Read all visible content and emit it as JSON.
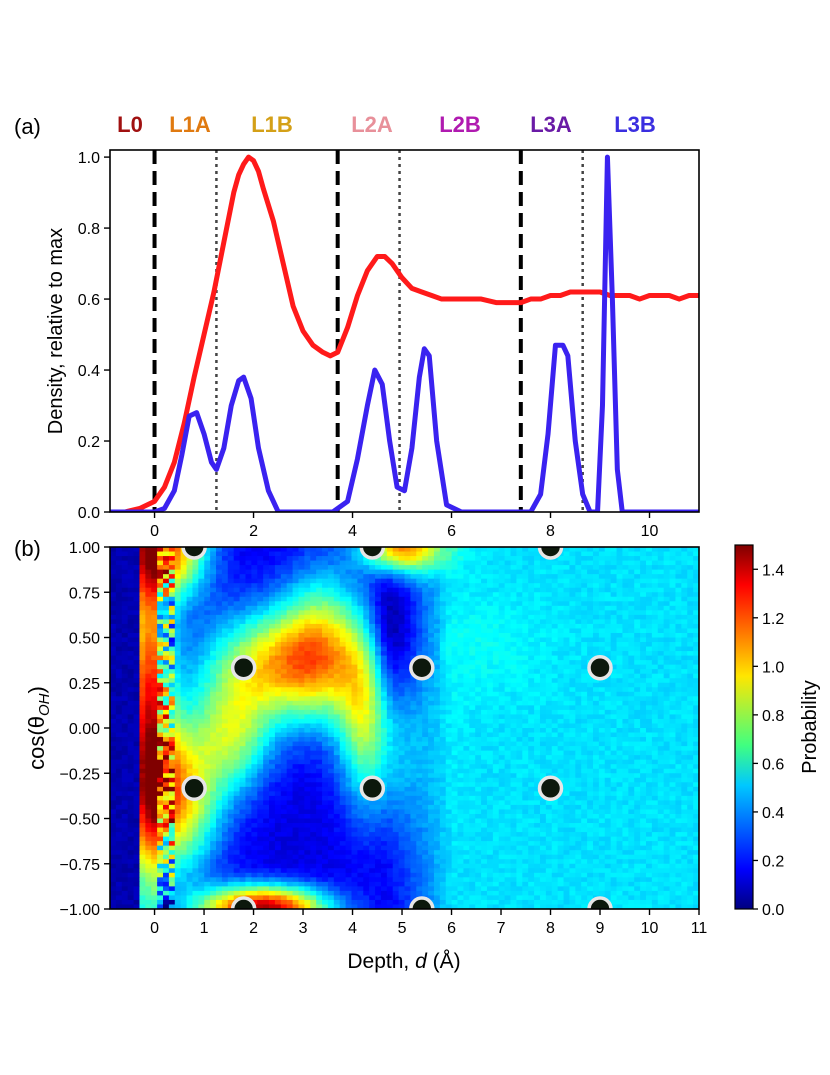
{
  "chart_data": [
    {
      "panel": "(a)",
      "type": "line",
      "ylabel": "Density, relative to max",
      "xlim": [
        -0.9,
        11.0
      ],
      "ylim": [
        0.0,
        1.02
      ],
      "xticks": [
        0,
        2,
        4,
        6,
        8,
        10
      ],
      "yticks": [
        0.0,
        0.2,
        0.4,
        0.6,
        0.8,
        1.0
      ],
      "xtick_labels": [
        "0",
        "2",
        "4",
        "6",
        "8",
        "10"
      ],
      "ytick_labels": [
        "0.0",
        "0.2",
        "0.4",
        "0.6",
        "0.8",
        "1.0"
      ],
      "layer_labels": [
        {
          "label": "L0",
          "color": "#a01010"
        },
        {
          "label": "L1A",
          "color": "#e07a10"
        },
        {
          "label": "L1B",
          "color": "#d4a017"
        },
        {
          "label": "L2A",
          "color": "#e8909a"
        },
        {
          "label": "L2B",
          "color": "#b01ab0"
        },
        {
          "label": "L3A",
          "color": "#6a1aa6"
        },
        {
          "label": "L3B",
          "color": "#3a2ee0"
        }
      ],
      "boundaries": [
        {
          "x": 0.0,
          "style": "dashed"
        },
        {
          "x": 1.25,
          "style": "dotted"
        },
        {
          "x": 3.7,
          "style": "dashed"
        },
        {
          "x": 4.95,
          "style": "dotted"
        },
        {
          "x": 7.4,
          "style": "dashed"
        },
        {
          "x": 8.65,
          "style": "dotted"
        }
      ],
      "series": [
        {
          "name": "red",
          "color": "#ff1a1a",
          "x": [
            -0.9,
            -0.6,
            -0.3,
            0.0,
            0.2,
            0.4,
            0.6,
            0.8,
            1.0,
            1.2,
            1.4,
            1.6,
            1.7,
            1.8,
            1.9,
            2.0,
            2.1,
            2.2,
            2.4,
            2.6,
            2.8,
            3.0,
            3.2,
            3.4,
            3.55,
            3.7,
            3.9,
            4.1,
            4.3,
            4.5,
            4.65,
            4.8,
            5.0,
            5.2,
            5.4,
            5.6,
            5.8,
            6.0,
            6.3,
            6.6,
            6.9,
            7.2,
            7.4,
            7.6,
            7.8,
            8.0,
            8.2,
            8.4,
            8.6,
            8.8,
            9.0,
            9.2,
            9.4,
            9.6,
            9.8,
            10.0,
            10.2,
            10.4,
            10.6,
            10.8,
            11.0
          ],
          "y": [
            0.0,
            0.0,
            0.01,
            0.03,
            0.07,
            0.14,
            0.25,
            0.38,
            0.5,
            0.62,
            0.76,
            0.9,
            0.95,
            0.98,
            1.0,
            0.99,
            0.96,
            0.91,
            0.82,
            0.7,
            0.58,
            0.51,
            0.47,
            0.45,
            0.44,
            0.45,
            0.52,
            0.61,
            0.68,
            0.72,
            0.72,
            0.7,
            0.66,
            0.63,
            0.62,
            0.61,
            0.6,
            0.6,
            0.6,
            0.6,
            0.59,
            0.59,
            0.59,
            0.6,
            0.6,
            0.61,
            0.61,
            0.62,
            0.62,
            0.62,
            0.62,
            0.61,
            0.61,
            0.61,
            0.6,
            0.61,
            0.61,
            0.61,
            0.6,
            0.61,
            0.61
          ]
        },
        {
          "name": "blue",
          "color": "#3a22f0",
          "x": [
            -0.9,
            -0.5,
            0.0,
            0.2,
            0.4,
            0.55,
            0.7,
            0.85,
            1.0,
            1.15,
            1.25,
            1.4,
            1.55,
            1.7,
            1.8,
            1.95,
            2.1,
            2.3,
            2.5,
            3.0,
            3.6,
            3.9,
            4.1,
            4.3,
            4.45,
            4.6,
            4.75,
            4.9,
            5.05,
            5.2,
            5.35,
            5.45,
            5.55,
            5.7,
            5.9,
            6.2,
            7.0,
            7.6,
            7.8,
            7.95,
            8.1,
            8.25,
            8.35,
            8.5,
            8.65,
            8.8,
            8.95,
            9.05,
            9.15,
            9.25,
            9.35,
            9.45,
            10.0,
            11.0
          ],
          "y": [
            0.0,
            0.0,
            0.0,
            0.01,
            0.06,
            0.16,
            0.27,
            0.28,
            0.22,
            0.14,
            0.12,
            0.18,
            0.3,
            0.37,
            0.38,
            0.32,
            0.18,
            0.06,
            0.0,
            0.0,
            0.0,
            0.03,
            0.15,
            0.3,
            0.4,
            0.36,
            0.2,
            0.07,
            0.06,
            0.18,
            0.38,
            0.46,
            0.44,
            0.2,
            0.02,
            0.0,
            0.0,
            0.0,
            0.05,
            0.22,
            0.47,
            0.47,
            0.44,
            0.2,
            0.05,
            0.0,
            0.0,
            0.3,
            1.0,
            0.6,
            0.12,
            0.0,
            0.0,
            0.0
          ]
        }
      ]
    },
    {
      "panel": "(b)",
      "type": "heatmap",
      "xlabel_pre": "Depth, ",
      "xlabel_var": "d",
      "xlabel_post": " (Å)",
      "ylabel_pre": "cos(θ",
      "ylabel_sub": "OH",
      "ylabel_post": ")",
      "colorbar_label": "Probability",
      "xlim": [
        -0.9,
        11.0
      ],
      "ylim": [
        -1.0,
        1.0
      ],
      "clim": [
        0.0,
        1.5
      ],
      "xticks": [
        0,
        1,
        2,
        3,
        4,
        5,
        6,
        7,
        8,
        9,
        10,
        11
      ],
      "xtick_labels": [
        "0",
        "1",
        "2",
        "3",
        "4",
        "5",
        "6",
        "7",
        "8",
        "9",
        "10",
        "11"
      ],
      "yticks": [
        1.0,
        0.75,
        0.5,
        0.25,
        0.0,
        -0.25,
        -0.5,
        -0.75,
        -1.0
      ],
      "ytick_labels": [
        "1.00",
        "0.75",
        "0.50",
        "0.25",
        "0.00",
        "−0.25",
        "−0.50",
        "−0.75",
        "−1.00"
      ],
      "cticks": [
        0.0,
        0.2,
        0.4,
        0.6,
        0.8,
        1.0,
        1.2,
        1.4
      ],
      "ctick_labels": [
        "0.0",
        "0.2",
        "0.4",
        "0.6",
        "0.8",
        "1.0",
        "1.2",
        "1.4"
      ],
      "markers": [
        {
          "x": 0.8,
          "y": 1.0
        },
        {
          "x": 4.4,
          "y": 1.0
        },
        {
          "x": 8.0,
          "y": 1.0
        },
        {
          "x": 1.8,
          "y": 0.333
        },
        {
          "x": 5.4,
          "y": 0.333
        },
        {
          "x": 9.0,
          "y": 0.333
        },
        {
          "x": 0.8,
          "y": -0.333
        },
        {
          "x": 4.4,
          "y": -0.333
        },
        {
          "x": 8.0,
          "y": -0.333
        },
        {
          "x": 1.8,
          "y": -1.0
        },
        {
          "x": 5.4,
          "y": -1.0
        },
        {
          "x": 9.0,
          "y": -1.0
        }
      ]
    }
  ]
}
